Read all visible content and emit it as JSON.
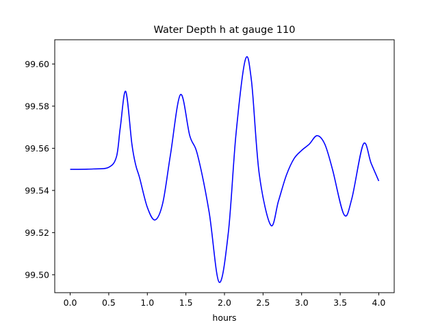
{
  "chart_data": {
    "type": "line",
    "title": "Water Depth h at gauge 110",
    "xlabel": "hours",
    "ylabel": "",
    "xlim": [
      -0.2,
      4.2
    ],
    "ylim": [
      99.4915,
      99.6115
    ],
    "xticks": [
      "0.0",
      "0.5",
      "1.0",
      "1.5",
      "2.0",
      "2.5",
      "3.0",
      "3.5",
      "4.0"
    ],
    "yticks": [
      "99.50",
      "99.52",
      "99.54",
      "99.56",
      "99.58",
      "99.60"
    ],
    "grid": false,
    "legend": "none",
    "series": [
      {
        "color": "#0000ff",
        "x": [
          0.0,
          0.3,
          0.5,
          0.6,
          0.65,
          0.72,
          0.8,
          0.85,
          0.9,
          1.0,
          1.1,
          1.2,
          1.3,
          1.43,
          1.55,
          1.65,
          1.8,
          1.93,
          2.05,
          2.15,
          2.27,
          2.35,
          2.45,
          2.6,
          2.7,
          2.8,
          2.9,
          3.0,
          3.1,
          3.2,
          3.3,
          3.4,
          3.55,
          3.65,
          3.8,
          3.9,
          4.0
        ],
        "y": [
          99.55,
          99.5502,
          99.551,
          99.556,
          99.57,
          99.587,
          99.562,
          99.552,
          99.546,
          99.532,
          99.526,
          99.534,
          99.557,
          99.5855,
          99.566,
          99.557,
          99.53,
          99.4965,
          99.52,
          99.567,
          99.602,
          99.592,
          99.548,
          99.5235,
          99.535,
          99.547,
          99.555,
          99.559,
          99.562,
          99.566,
          99.562,
          99.55,
          99.5285,
          99.536,
          99.562,
          99.553,
          99.5445
        ]
      }
    ]
  }
}
